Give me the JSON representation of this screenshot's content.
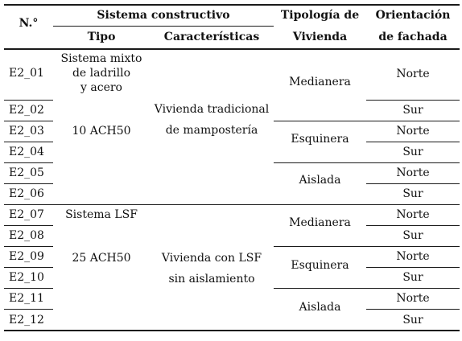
{
  "header": {
    "n": "N.°",
    "sistema": "Sistema constructivo",
    "tipo": "Tipo",
    "caracteristicas": "Características",
    "tipologia_1": "Tipología de",
    "tipologia_2": "Vivienda",
    "orientacion_1": "Orientación",
    "orientacion_2": "de fachada"
  },
  "group1": {
    "tipo_lines": [
      "Sistema mixto",
      "de ladrillo",
      "y acero"
    ],
    "tipo_ach": "10 ACH50",
    "caract_lines": [
      "Vivienda tradicional",
      "de mampostería"
    ]
  },
  "group2": {
    "tipo_lines": [
      "Sistema LSF"
    ],
    "tipo_ach": "25 ACH50",
    "caract_lines": [
      "Vivienda con LSF",
      "sin aislamiento"
    ]
  },
  "rows": [
    {
      "id": "E2_01",
      "orient": "Norte"
    },
    {
      "id": "E2_02",
      "orient": "Sur"
    },
    {
      "id": "E2_03",
      "orient": "Norte"
    },
    {
      "id": "E2_04",
      "orient": "Sur"
    },
    {
      "id": "E2_05",
      "orient": "Norte"
    },
    {
      "id": "E2_06",
      "orient": "Sur"
    },
    {
      "id": "E2_07",
      "orient": "Norte"
    },
    {
      "id": "E2_08",
      "orient": "Sur"
    },
    {
      "id": "E2_09",
      "orient": "Norte"
    },
    {
      "id": "E2_10",
      "orient": "Sur"
    },
    {
      "id": "E2_11",
      "orient": "Norte"
    },
    {
      "id": "E2_12",
      "orient": "Sur"
    }
  ],
  "tipologias": [
    "Medianera",
    "Esquinera",
    "Aislada",
    "Medianera",
    "Esquinera",
    "Aislada"
  ]
}
